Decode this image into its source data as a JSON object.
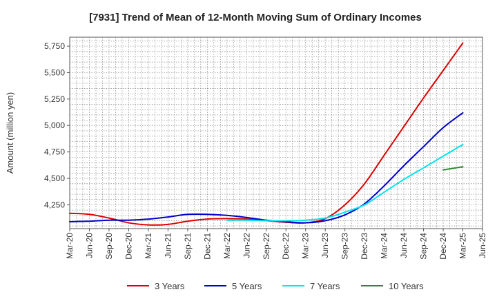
{
  "chart_data": {
    "type": "line",
    "title": "[7931]  Trend of Mean of 12-Month Moving Sum of Ordinary Incomes",
    "xlabel": "",
    "ylabel": "Amount (million yen)",
    "x_ticks": [
      "Mar-20",
      "Jun-20",
      "Sep-20",
      "Dec-20",
      "Mar-21",
      "Jun-21",
      "Sep-21",
      "Dec-21",
      "Mar-22",
      "Jun-22",
      "Sep-22",
      "Dec-22",
      "Mar-23",
      "Jun-23",
      "Sep-23",
      "Dec-23",
      "Mar-24",
      "Jun-24",
      "Sep-24",
      "Dec-24",
      "Mar-25",
      "Jun-25"
    ],
    "y_ticks": [
      4250,
      4500,
      4750,
      5000,
      5250,
      5500,
      5750
    ],
    "y_tick_labels": [
      "4,250",
      "4,500",
      "4,750",
      "5,000",
      "5,250",
      "5,500",
      "5,750"
    ],
    "ylim": [
      4025,
      5835
    ],
    "grid": true,
    "legend_position": "bottom",
    "series": [
      {
        "name": "3 Years",
        "color": "#e00000",
        "points": [
          [
            "Mar-20",
            4170
          ],
          [
            "Jun-20",
            4160
          ],
          [
            "Sep-20",
            4125
          ],
          [
            "Dec-20",
            4080
          ],
          [
            "Mar-21",
            4060
          ],
          [
            "Jun-21",
            4065
          ],
          [
            "Sep-21",
            4095
          ],
          [
            "Dec-21",
            4115
          ],
          [
            "Mar-22",
            4120
          ],
          [
            "Jun-22",
            4115
          ],
          [
            "Sep-22",
            4100
          ],
          [
            "Dec-22",
            4085
          ],
          [
            "Mar-23",
            4080
          ],
          [
            "Jun-23",
            4120
          ],
          [
            "Sep-23",
            4250
          ],
          [
            "Dec-23",
            4450
          ],
          [
            "Mar-24",
            4720
          ],
          [
            "Jun-24",
            4990
          ],
          [
            "Sep-24",
            5260
          ],
          [
            "Dec-24",
            5520
          ],
          [
            "Mar-25",
            5780
          ]
        ]
      },
      {
        "name": "5 Years",
        "color": "#0000cc",
        "points": [
          [
            "Mar-20",
            4090
          ],
          [
            "Jun-20",
            4095
          ],
          [
            "Sep-20",
            4105
          ],
          [
            "Dec-20",
            4105
          ],
          [
            "Mar-21",
            4115
          ],
          [
            "Jun-21",
            4135
          ],
          [
            "Sep-21",
            4160
          ],
          [
            "Dec-21",
            4160
          ],
          [
            "Mar-22",
            4150
          ],
          [
            "Jun-22",
            4130
          ],
          [
            "Sep-22",
            4105
          ],
          [
            "Dec-22",
            4090
          ],
          [
            "Mar-23",
            4080
          ],
          [
            "Jun-23",
            4100
          ],
          [
            "Sep-23",
            4155
          ],
          [
            "Dec-23",
            4260
          ],
          [
            "Mar-24",
            4430
          ],
          [
            "Jun-24",
            4620
          ],
          [
            "Sep-24",
            4800
          ],
          [
            "Dec-24",
            4980
          ],
          [
            "Mar-25",
            5120
          ]
        ]
      },
      {
        "name": "7 Years",
        "color": "#00e5ee",
        "points": [
          [
            "Mar-22",
            4105
          ],
          [
            "Jun-22",
            4105
          ],
          [
            "Sep-22",
            4100
          ],
          [
            "Dec-22",
            4100
          ],
          [
            "Mar-23",
            4105
          ],
          [
            "Jun-23",
            4125
          ],
          [
            "Sep-23",
            4180
          ],
          [
            "Dec-23",
            4250
          ],
          [
            "Mar-24",
            4370
          ],
          [
            "Jun-24",
            4490
          ],
          [
            "Sep-24",
            4600
          ],
          [
            "Dec-24",
            4710
          ],
          [
            "Mar-25",
            4820
          ]
        ]
      },
      {
        "name": "10 Years",
        "color": "#2e8b2e",
        "points": [
          [
            "Dec-24",
            4580
          ],
          [
            "Mar-25",
            4610
          ]
        ]
      }
    ]
  }
}
